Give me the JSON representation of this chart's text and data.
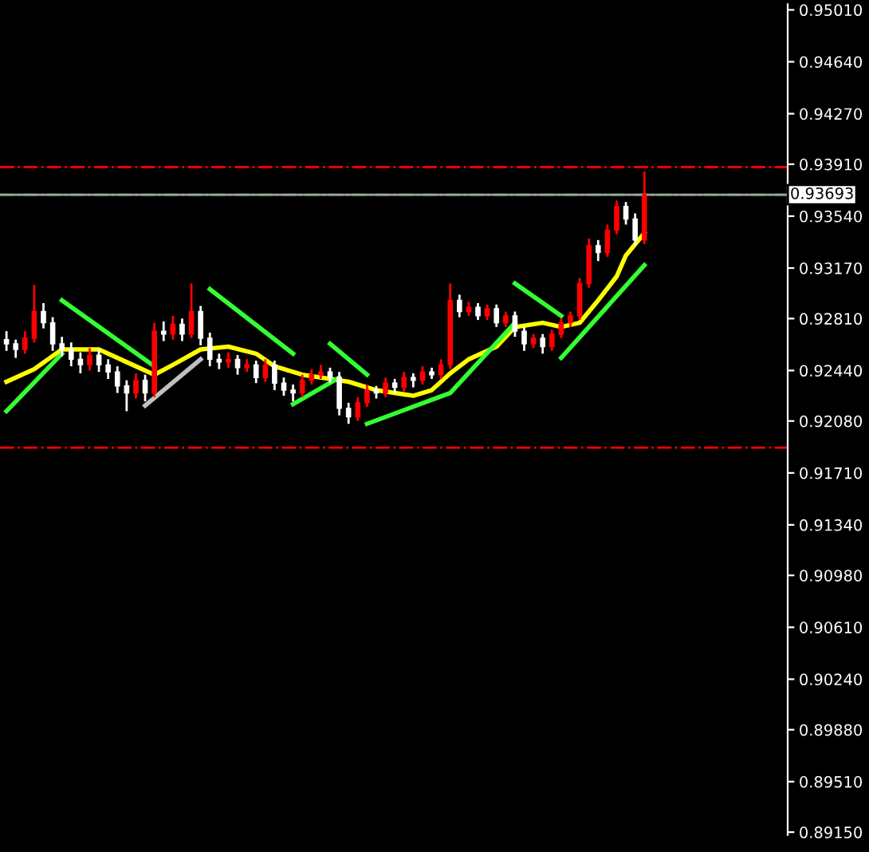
{
  "chart_data": {
    "type": "candlestick",
    "categories": [
      null,
      null,
      null,
      null,
      null,
      null,
      null,
      null,
      null,
      null,
      null,
      null,
      null,
      null,
      null,
      null,
      null,
      null,
      null,
      null,
      null,
      null,
      null,
      null,
      null,
      null,
      null,
      null,
      null,
      null,
      null,
      null,
      null,
      null,
      null,
      null,
      null,
      null,
      null,
      null,
      null,
      null,
      null,
      null,
      null,
      null,
      null,
      null,
      null,
      null,
      null,
      null,
      null,
      null,
      null,
      null,
      null,
      null,
      null,
      null,
      null,
      null,
      null,
      null,
      null,
      null,
      null,
      null,
      null,
      null,
      null,
      null,
      null,
      null,
      null,
      null,
      null,
      null,
      null,
      null,
      null,
      null,
      null,
      null,
      null
    ],
    "ohlc": [
      [
        0.9266,
        0.9272,
        0.9258,
        0.9263
      ],
      [
        0.9263,
        0.9266,
        0.9253,
        0.9259
      ],
      [
        0.9259,
        0.9272,
        0.9256,
        0.9267
      ],
      [
        0.9267,
        0.9305,
        0.9264,
        0.9286
      ],
      [
        0.9286,
        0.9292,
        0.9274,
        0.9278
      ],
      [
        0.9278,
        0.9282,
        0.9258,
        0.9263
      ],
      [
        0.9263,
        0.9268,
        0.9254,
        0.9259
      ],
      [
        0.9259,
        0.9264,
        0.9247,
        0.9252
      ],
      [
        0.9252,
        0.9257,
        0.9242,
        0.9248
      ],
      [
        0.9248,
        0.926,
        0.9244,
        0.9255
      ],
      [
        0.9255,
        0.9259,
        0.9243,
        0.9248
      ],
      [
        0.9248,
        0.9252,
        0.9238,
        0.9243
      ],
      [
        0.9243,
        0.9247,
        0.9228,
        0.9233
      ],
      [
        0.9233,
        0.9237,
        0.9215,
        0.9228
      ],
      [
        0.9228,
        0.9242,
        0.9224,
        0.9237
      ],
      [
        0.9237,
        0.9241,
        0.9222,
        0.9228
      ],
      [
        0.9228,
        0.9278,
        0.9225,
        0.9272
      ],
      [
        0.9272,
        0.9279,
        0.9265,
        0.927
      ],
      [
        0.927,
        0.9283,
        0.9266,
        0.9277
      ],
      [
        0.9277,
        0.9281,
        0.9265,
        0.927
      ],
      [
        0.927,
        0.9306,
        0.9267,
        0.9286
      ],
      [
        0.9286,
        0.929,
        0.9262,
        0.9267
      ],
      [
        0.9267,
        0.9271,
        0.9247,
        0.9252
      ],
      [
        0.9252,
        0.9256,
        0.9245,
        0.925
      ],
      [
        0.925,
        0.9257,
        0.9246,
        0.9252
      ],
      [
        0.9252,
        0.9255,
        0.9241,
        0.9246
      ],
      [
        0.9246,
        0.9252,
        0.9243,
        0.9248
      ],
      [
        0.9248,
        0.9251,
        0.9235,
        0.9239
      ],
      [
        0.9239,
        0.9252,
        0.9236,
        0.9248
      ],
      [
        0.9248,
        0.9251,
        0.923,
        0.9235
      ],
      [
        0.9235,
        0.9239,
        0.9226,
        0.923
      ],
      [
        0.923,
        0.9234,
        0.9222,
        0.9228
      ],
      [
        0.9228,
        0.9241,
        0.9225,
        0.9237
      ],
      [
        0.9237,
        0.9245,
        0.9234,
        0.9241
      ],
      [
        0.9241,
        0.9248,
        0.9238,
        0.9243
      ],
      [
        0.9243,
        0.9246,
        0.9235,
        0.9239
      ],
      [
        0.9239,
        0.9243,
        0.9212,
        0.9217
      ],
      [
        0.9217,
        0.9221,
        0.9206,
        0.9211
      ],
      [
        0.9211,
        0.9225,
        0.9208,
        0.9221
      ],
      [
        0.9221,
        0.9234,
        0.9218,
        0.923
      ],
      [
        0.923,
        0.9233,
        0.9224,
        0.9228
      ],
      [
        0.9228,
        0.9239,
        0.9225,
        0.9235
      ],
      [
        0.9235,
        0.9238,
        0.9228,
        0.9232
      ],
      [
        0.9232,
        0.9243,
        0.9229,
        0.9239
      ],
      [
        0.9239,
        0.9242,
        0.9232,
        0.9237
      ],
      [
        0.9237,
        0.9247,
        0.9234,
        0.9243
      ],
      [
        0.9243,
        0.9246,
        0.9238,
        0.9241
      ],
      [
        0.9241,
        0.9252,
        0.9238,
        0.9248
      ],
      [
        0.9248,
        0.9306,
        0.9245,
        0.9294
      ],
      [
        0.9294,
        0.9298,
        0.9282,
        0.9286
      ],
      [
        0.9286,
        0.9293,
        0.9283,
        0.9289
      ],
      [
        0.9289,
        0.9292,
        0.928,
        0.9283
      ],
      [
        0.9283,
        0.9291,
        0.928,
        0.9288
      ],
      [
        0.9288,
        0.9291,
        0.9275,
        0.9278
      ],
      [
        0.9278,
        0.9286,
        0.9275,
        0.9283
      ],
      [
        0.9283,
        0.9286,
        0.9268,
        0.9272
      ],
      [
        0.9272,
        0.9275,
        0.9258,
        0.9263
      ],
      [
        0.9263,
        0.927,
        0.926,
        0.9267
      ],
      [
        0.9267,
        0.927,
        0.9256,
        0.9261
      ],
      [
        0.9261,
        0.9273,
        0.9258,
        0.927
      ],
      [
        0.927,
        0.9281,
        0.9267,
        0.9278
      ],
      [
        0.9278,
        0.9286,
        0.9275,
        0.9283
      ],
      [
        0.9283,
        0.931,
        0.928,
        0.9306
      ],
      [
        0.9306,
        0.9338,
        0.9303,
        0.9333
      ],
      [
        0.9333,
        0.9337,
        0.9322,
        0.9328
      ],
      [
        0.9328,
        0.9348,
        0.9325,
        0.9344
      ],
      [
        0.9344,
        0.9365,
        0.9341,
        0.9361
      ],
      [
        0.9361,
        0.9364,
        0.9348,
        0.9352
      ],
      [
        0.9352,
        0.9356,
        0.9333,
        0.9337
      ],
      [
        0.9337,
        0.9386,
        0.9334,
        0.9369
      ],
      null,
      null,
      null,
      null,
      null,
      null,
      null,
      null,
      null,
      null,
      null,
      null,
      null,
      null,
      null
    ],
    "colors": [
      "#ffffff",
      "#ffffff",
      "#ff0000",
      "#ff0000",
      "#ffffff",
      "#ffffff",
      "#ffffff",
      "#ffffff",
      "#ffffff",
      "#ff0000",
      "#ffffff",
      "#ffffff",
      "#ffffff",
      "#ffffff",
      "#ff0000",
      "#ffffff",
      "#ff0000",
      "#ffffff",
      "#ff0000",
      "#ffffff",
      "#ff0000",
      "#ffffff",
      "#ffffff",
      "#ffffff",
      "#ff0000",
      "#ffffff",
      "#ff0000",
      "#ffffff",
      "#ff0000",
      "#ffffff",
      "#ffffff",
      "#ffffff",
      "#ff0000",
      "#ff0000",
      "#ff0000",
      "#ffffff",
      "#ffffff",
      "#ffffff",
      "#ff0000",
      "#ff0000",
      "#ffffff",
      "#ff0000",
      "#ffffff",
      "#ff0000",
      "#ffffff",
      "#ff0000",
      "#ffffff",
      "#ff0000",
      "#ff0000",
      "#ffffff",
      "#ff0000",
      "#ffffff",
      "#ff0000",
      "#ffffff",
      "#ff0000",
      "#ffffff",
      "#ffffff",
      "#ff0000",
      "#ffffff",
      "#ff0000",
      "#ff0000",
      "#ff0000",
      "#ff0000",
      "#ff0000",
      "#ffffff",
      "#ff0000",
      "#ff0000",
      "#ffffff",
      "#ffffff",
      "#ff0000",
      null,
      null,
      null,
      null,
      null,
      null,
      null,
      null,
      null,
      null,
      null,
      null,
      null,
      null,
      null
    ],
    "series": [
      {
        "type": "line",
        "color": "#ffff00",
        "values": [
          0.9236,
          null,
          null,
          0.9245,
          null,
          null,
          0.9259,
          null,
          null,
          null,
          0.9259,
          null,
          null,
          0.925,
          null,
          null,
          0.9241,
          null,
          0.9248,
          null,
          null,
          0.9259,
          null,
          null,
          0.9261,
          null,
          null,
          0.9256,
          null,
          0.9247,
          null,
          null,
          0.9241,
          null,
          0.9239,
          null,
          null,
          0.9236,
          null,
          null,
          0.923,
          null,
          null,
          null,
          0.9226,
          null,
          0.923,
          null,
          0.9242,
          null,
          0.9252,
          null,
          null,
          0.9261,
          null,
          0.9275,
          null,
          null,
          0.9278,
          null,
          0.9275,
          null,
          0.9278,
          null,
          0.9294,
          null,
          0.9311,
          0.9326,
          null,
          0.9342,
          null,
          null,
          null,
          null,
          null,
          null,
          null,
          null,
          null,
          null,
          null,
          null,
          null,
          null,
          null
        ]
      },
      {
        "type": "line",
        "color": "#33ff33",
        "values": [
          0.9215,
          null,
          null,
          null,
          null,
          null,
          0.9256,
          null,
          null,
          null,
          null,
          null,
          null,
          null,
          null,
          null,
          null,
          null,
          null,
          null,
          null,
          null,
          null,
          null,
          null,
          null,
          null,
          null,
          null,
          null,
          null,
          null,
          null,
          null,
          null,
          null,
          null,
          null,
          null,
          null,
          null,
          null,
          null,
          null,
          null,
          null,
          null,
          null,
          null,
          null,
          null,
          null,
          null,
          null,
          null,
          null,
          null,
          null,
          null,
          null,
          null,
          null,
          null,
          null,
          null,
          null,
          null,
          null,
          null,
          null,
          null,
          null,
          null,
          null,
          null,
          null,
          null,
          null,
          null,
          null,
          null,
          null,
          null,
          null,
          null
        ]
      },
      {
        "type": "line",
        "color": "#33ff33",
        "values": [
          null,
          null,
          null,
          null,
          null,
          null,
          0.9294,
          null,
          null,
          null,
          null,
          null,
          null,
          null,
          null,
          null,
          0.9247,
          null,
          null,
          null,
          null,
          null,
          null,
          null,
          null,
          null,
          null,
          null,
          null,
          null,
          null,
          null,
          null,
          null,
          null,
          null,
          null,
          null,
          null,
          null,
          null,
          null,
          null,
          null,
          null,
          null,
          null,
          null,
          null,
          null,
          null,
          null,
          null,
          null,
          null,
          null,
          null,
          null,
          null,
          null,
          null,
          null,
          null,
          null,
          null,
          null,
          null,
          null,
          null,
          null,
          null,
          null,
          null,
          null,
          null,
          null,
          null,
          null,
          null,
          null,
          null,
          null,
          null,
          null,
          null
        ]
      },
      {
        "type": "line",
        "color": "#c0c0c0",
        "values": [
          null,
          null,
          null,
          null,
          null,
          null,
          null,
          null,
          null,
          null,
          null,
          null,
          null,
          null,
          null,
          0.9219,
          null,
          null,
          null,
          null,
          null,
          0.9252,
          null,
          null,
          null,
          null,
          null,
          null,
          null,
          null,
          null,
          null,
          null,
          null,
          null,
          null,
          null,
          null,
          null,
          null,
          null,
          null,
          null,
          null,
          null,
          null,
          null,
          null,
          null,
          null,
          null,
          null,
          null,
          null,
          null,
          null,
          null,
          null,
          null,
          null,
          null,
          null,
          null,
          null,
          null,
          null,
          null,
          null,
          null,
          null,
          null,
          null,
          null,
          null,
          null,
          null,
          null,
          null,
          null,
          null,
          null,
          null,
          null,
          null,
          null
        ]
      },
      {
        "type": "line",
        "color": "#33ff33",
        "values": [
          null,
          null,
          null,
          null,
          null,
          null,
          null,
          null,
          null,
          null,
          null,
          null,
          null,
          null,
          null,
          null,
          null,
          null,
          null,
          null,
          null,
          null,
          0.9302,
          null,
          null,
          null,
          null,
          null,
          null,
          null,
          null,
          0.9256,
          null,
          null,
          null,
          null,
          null,
          null,
          null,
          null,
          null,
          null,
          null,
          null,
          null,
          null,
          null,
          null,
          null,
          null,
          null,
          null,
          null,
          null,
          null,
          null,
          null,
          null,
          null,
          null,
          null,
          null,
          null,
          null,
          null,
          null,
          null,
          null,
          null,
          null,
          null,
          null,
          null,
          null,
          null,
          null,
          null,
          null,
          null,
          null,
          null,
          null,
          null,
          null,
          null
        ]
      },
      {
        "type": "line",
        "color": "#33ff33",
        "values": [
          null,
          null,
          null,
          null,
          null,
          null,
          null,
          null,
          null,
          null,
          null,
          null,
          null,
          null,
          null,
          null,
          null,
          null,
          null,
          null,
          null,
          null,
          null,
          null,
          null,
          null,
          null,
          null,
          null,
          null,
          null,
          0.922,
          null,
          null,
          null,
          null,
          0.9239,
          null,
          null,
          null,
          null,
          null,
          null,
          null,
          null,
          null,
          null,
          null,
          null,
          null,
          null,
          null,
          null,
          null,
          null,
          null,
          null,
          null,
          null,
          null,
          null,
          null,
          null,
          null,
          null,
          null,
          null,
          null,
          null,
          null,
          null,
          null,
          null,
          null,
          null,
          null,
          null,
          null,
          null,
          null,
          null,
          null,
          null,
          null,
          null
        ]
      },
      {
        "type": "line",
        "color": "#33ff33",
        "values": [
          null,
          null,
          null,
          null,
          null,
          null,
          null,
          null,
          null,
          null,
          null,
          null,
          null,
          null,
          null,
          null,
          null,
          null,
          null,
          null,
          null,
          null,
          null,
          null,
          null,
          null,
          null,
          null,
          null,
          null,
          null,
          null,
          null,
          null,
          null,
          0.9263,
          null,
          null,
          null,
          0.9241,
          null,
          null,
          null,
          null,
          null,
          null,
          null,
          null,
          null,
          null,
          null,
          null,
          null,
          null,
          null,
          null,
          null,
          null,
          null,
          null,
          null,
          null,
          null,
          null,
          null,
          null,
          null,
          null,
          null,
          null,
          null,
          null,
          null,
          null,
          null,
          null,
          null,
          null,
          null,
          null,
          null,
          null,
          null,
          null,
          null
        ]
      },
      {
        "type": "line",
        "color": "#33ff33",
        "values": [
          null,
          null,
          null,
          null,
          null,
          null,
          null,
          null,
          null,
          null,
          null,
          null,
          null,
          null,
          null,
          null,
          null,
          null,
          null,
          null,
          null,
          null,
          null,
          null,
          null,
          null,
          null,
          null,
          null,
          null,
          null,
          null,
          null,
          null,
          null,
          null,
          null,
          null,
          null,
          0.9206,
          null,
          null,
          null,
          null,
          null,
          null,
          null,
          null,
          0.9228,
          null,
          null,
          null,
          null,
          null,
          null,
          0.9278,
          null,
          null,
          null,
          null,
          null,
          null,
          null,
          null,
          null,
          null,
          null,
          null,
          null,
          null,
          null,
          null,
          null,
          null,
          null,
          null,
          null,
          null,
          null,
          null,
          null,
          null,
          null,
          null,
          null
        ]
      },
      {
        "type": "line",
        "color": "#33ff33",
        "values": [
          null,
          null,
          null,
          null,
          null,
          null,
          null,
          null,
          null,
          null,
          null,
          null,
          null,
          null,
          null,
          null,
          null,
          null,
          null,
          null,
          null,
          null,
          null,
          null,
          null,
          null,
          null,
          null,
          null,
          null,
          null,
          null,
          null,
          null,
          null,
          null,
          null,
          null,
          null,
          null,
          null,
          null,
          null,
          null,
          null,
          null,
          null,
          null,
          null,
          null,
          null,
          null,
          null,
          null,
          null,
          0.9306,
          null,
          null,
          null,
          null,
          0.9283,
          null,
          null,
          null,
          null,
          null,
          null,
          null,
          null,
          null,
          null,
          null,
          null,
          null,
          null,
          null,
          null,
          null,
          null,
          null,
          null,
          null,
          null,
          null,
          null
        ]
      },
      {
        "type": "line",
        "color": "#33ff33",
        "values": [
          null,
          null,
          null,
          null,
          null,
          null,
          null,
          null,
          null,
          null,
          null,
          null,
          null,
          null,
          null,
          null,
          null,
          null,
          null,
          null,
          null,
          null,
          null,
          null,
          null,
          null,
          null,
          null,
          null,
          null,
          null,
          null,
          null,
          null,
          null,
          null,
          null,
          null,
          null,
          null,
          null,
          null,
          null,
          null,
          null,
          null,
          null,
          null,
          null,
          null,
          null,
          null,
          null,
          null,
          null,
          null,
          null,
          null,
          null,
          null,
          0.9253,
          null,
          null,
          null,
          null,
          null,
          null,
          null,
          null,
          0.9319,
          null,
          null,
          null,
          null,
          null,
          null,
          null,
          null,
          null,
          null,
          null,
          null,
          null,
          null,
          null
        ]
      }
    ],
    "ylim": [
      0.8913,
      0.9505
    ],
    "yticks": [
      {
        "value": 0.9501,
        "label": "0.95010"
      },
      {
        "value": 0.9464,
        "label": "0.94640"
      },
      {
        "value": 0.9427,
        "label": "0.94270"
      },
      {
        "value": 0.9391,
        "label": "0.93910"
      },
      {
        "value": 0.9354,
        "label": "0.93540"
      },
      {
        "value": 0.9317,
        "label": "0.93170"
      },
      {
        "value": 0.9281,
        "label": "0.92810"
      },
      {
        "value": 0.9244,
        "label": "0.92440"
      },
      {
        "value": 0.9208,
        "label": "0.92080"
      },
      {
        "value": 0.9171,
        "label": "0.91710"
      },
      {
        "value": 0.9134,
        "label": "0.91340"
      },
      {
        "value": 0.9098,
        "label": "0.90980"
      },
      {
        "value": 0.9061,
        "label": "0.90610"
      },
      {
        "value": 0.9024,
        "label": "0.90240"
      },
      {
        "value": 0.8988,
        "label": "0.89880"
      },
      {
        "value": 0.8951,
        "label": "0.89510"
      },
      {
        "value": 0.8915,
        "label": "0.89150"
      }
    ],
    "ref_lines": [
      {
        "axis": "y",
        "value": 0.9389,
        "color": "#ff0000",
        "line_style": "dashdot"
      },
      {
        "axis": "y",
        "value": 0.9189,
        "color": "#ff0000",
        "line_style": "dashdot"
      },
      {
        "axis": "y",
        "value": 0.93693,
        "color": "#33cc33",
        "line_style": "dashdot"
      },
      {
        "axis": "y",
        "value": 0.93693,
        "color": "#a0a0a0",
        "line_style": "solid",
        "label": "0.93693"
      }
    ],
    "tick_labels": "y",
    "grid": false,
    "legend": false
  }
}
